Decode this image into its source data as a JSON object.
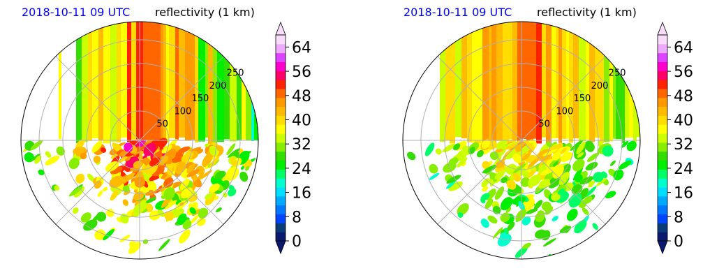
{
  "chart_data": [
    {
      "type": "heatmap",
      "projection": "polar",
      "title_left": "2018-10-11 09 UTC",
      "title_right": "reflectivity (1 km)",
      "range_ring_labels": [
        "50",
        "100",
        "150",
        "200",
        "250"
      ],
      "colorbar": {
        "ticks": [
          "0",
          "8",
          "16",
          "24",
          "32",
          "40",
          "48",
          "56",
          "64"
        ],
        "range": [
          0,
          68
        ],
        "extend": "both"
      }
    },
    {
      "type": "heatmap",
      "projection": "polar",
      "title_left": "2018-10-11 09 UTC",
      "title_right": "reflectivity (1 km)",
      "range_ring_labels": [
        "50",
        "100",
        "150",
        "200",
        "250"
      ],
      "colorbar": {
        "ticks": [
          "0",
          "8",
          "16",
          "24",
          "32",
          "40",
          "48",
          "56",
          "64"
        ],
        "range": [
          0,
          68
        ],
        "extend": "both"
      }
    }
  ],
  "colors": {
    "colormap": [
      "#0b1a6e",
      "#0a3d78",
      "#0044ff",
      "#0077ff",
      "#00aaff",
      "#00ddff",
      "#00ffcc",
      "#00ff66",
      "#00ee00",
      "#33dd00",
      "#88ee00",
      "#ccff00",
      "#ffff00",
      "#ffdd00",
      "#ffbb00",
      "#ff9900",
      "#ff6600",
      "#ff2200",
      "#ff0066",
      "#ff00cc",
      "#dd44ff",
      "#eeaaff",
      "#f7ddf7"
    ],
    "grid": "#b0b0b0",
    "title_date": "#0000ff"
  }
}
